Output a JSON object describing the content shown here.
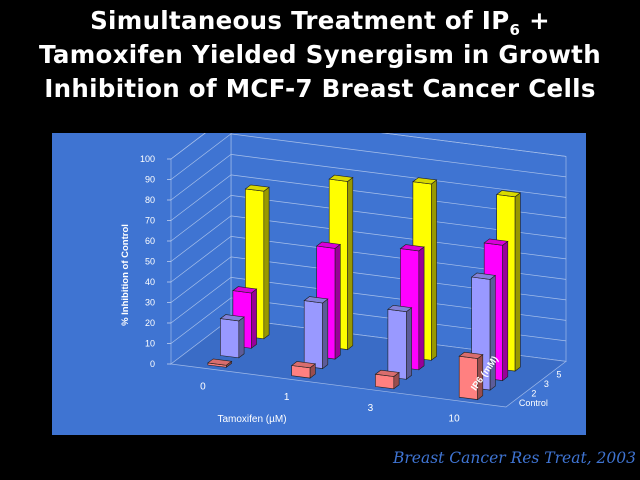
{
  "slide": {
    "title_line1_prefix": "Simultaneous Treatment of IP",
    "title_line1_sub": "6",
    "title_line1_suffix": " +",
    "title_line2": "Tamoxifen Yielded Synergism in Growth",
    "title_line3": "Inhibition of MCF-7 Breast Cancer Cells",
    "citation": "Breast Cancer Res Treat, 2003"
  },
  "chart_data": {
    "type": "bar",
    "subtype": "3d-clustered",
    "xlabel": "Tamoxifen (µM)",
    "ylabel": "% Inhibition of Control",
    "zlabel": "IP6 (mM)",
    "categories": [
      "0",
      "1",
      "3",
      "10"
    ],
    "ylim": [
      0,
      100
    ],
    "yticks": [
      "0",
      "10",
      "20",
      "30",
      "40",
      "50",
      "60",
      "70",
      "80",
      "90",
      "100"
    ],
    "grid": true,
    "legend": "none",
    "series": [
      {
        "name": "Control",
        "values": [
          1,
          5,
          6,
          20
        ],
        "color": "#ff8080"
      },
      {
        "name": "2",
        "values": [
          18,
          32,
          33,
          54
        ],
        "color": "#9999ff"
      },
      {
        "name": "3",
        "values": [
          27,
          54,
          58,
          66
        ],
        "color": "#ff00ff"
      },
      {
        "name": "5",
        "values": [
          72,
          82,
          86,
          85
        ],
        "color": "#ffff00"
      }
    ]
  }
}
